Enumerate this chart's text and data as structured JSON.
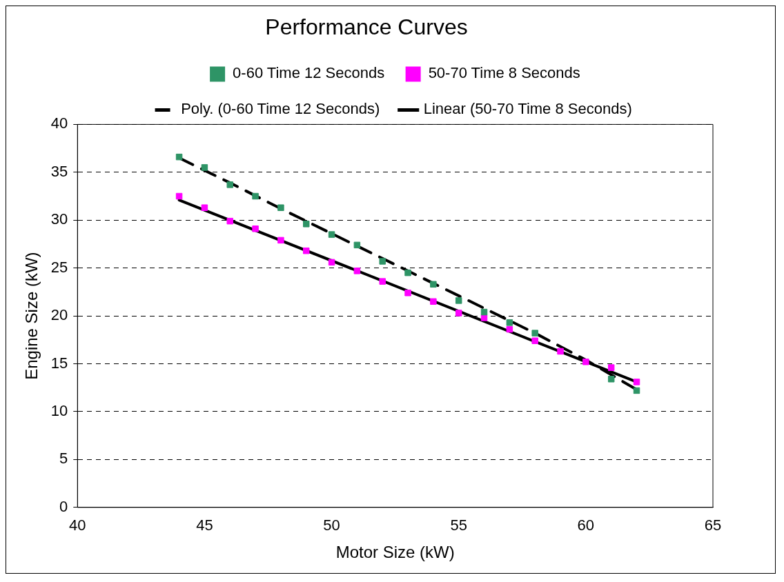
{
  "chart_data": {
    "type": "scatter",
    "title": "Performance Curves",
    "xlabel": "Motor Size (kW)",
    "ylabel": "Engine Size (kW)",
    "xlim": [
      40,
      65
    ],
    "xticks": [
      40,
      45,
      50,
      55,
      60,
      65
    ],
    "ylim": [
      0,
      40
    ],
    "yticks": [
      0,
      5,
      10,
      15,
      20,
      25,
      30,
      35,
      40
    ],
    "grid": "y",
    "legend": "top",
    "marker": "square",
    "series": [
      {
        "name": "0-60 Time 12 Seconds",
        "color": "#2e9466",
        "x": [
          44,
          45,
          46,
          47,
          48,
          49,
          50,
          51,
          52,
          53,
          54,
          55,
          56,
          57,
          58,
          59,
          60,
          61,
          62
        ],
        "values": [
          36.6,
          35.5,
          33.7,
          32.5,
          31.3,
          29.6,
          28.5,
          27.4,
          25.7,
          24.5,
          23.3,
          21.6,
          20.4,
          19.3,
          18.2,
          null,
          null,
          13.4,
          12.2
        ]
      },
      {
        "name": "50-70 Time 8 Seconds",
        "color": "#ff00ff",
        "x": [
          44,
          45,
          46,
          47,
          48,
          49,
          50,
          51,
          52,
          53,
          54,
          55,
          56,
          57,
          58,
          59,
          60,
          61,
          62
        ],
        "values": [
          32.5,
          31.3,
          29.9,
          29.1,
          27.9,
          26.8,
          25.6,
          24.7,
          23.6,
          22.4,
          21.5,
          20.3,
          19.8,
          18.6,
          17.4,
          16.3,
          15.2,
          14.6,
          13.1
        ]
      },
      {
        "name": "Poly. (0-60 Time 12 Seconds)",
        "type": "line",
        "line_style": "dashed",
        "marker": "none",
        "color": "#000000",
        "x": [
          44,
          46,
          48,
          50,
          52,
          54,
          56,
          58,
          60,
          62
        ],
        "values": [
          36.5,
          33.9,
          31.2,
          28.6,
          26.0,
          23.4,
          20.8,
          18.2,
          15.4,
          12.3
        ]
      },
      {
        "name": "Linear (50-70 Time 8 Seconds)",
        "type": "line",
        "line_style": "solid",
        "marker": "none",
        "color": "#000000",
        "x": [
          44,
          62
        ],
        "values": [
          32.1,
          13.1
        ]
      }
    ]
  }
}
